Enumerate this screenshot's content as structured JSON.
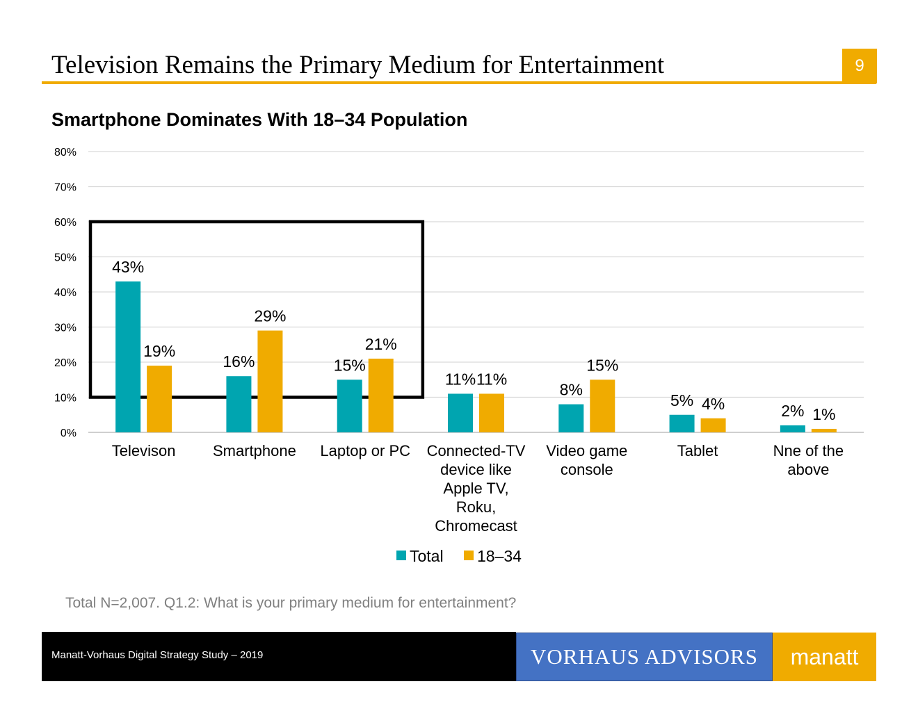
{
  "header": {
    "title": "Television Remains the Primary Medium for Entertainment",
    "page_number": "9"
  },
  "footnote": "Total N=2,007. Q1.2: What is your primary medium for entertainment?",
  "footer": {
    "study": "Manatt-Vorhaus Digital Strategy Study – 2019",
    "vorhaus_logo": "VORHAUS ADVISORS",
    "manatt_logo": "manatt"
  },
  "colors": {
    "accent": "#f0ab00",
    "total": "#00a5b0",
    "age_18_34": "#f0ab00",
    "vorhaus": "#4472c4"
  },
  "chart_data": {
    "type": "bar",
    "title": "Smartphone Dominates With 18–34 Population",
    "categories": [
      [
        "Televison"
      ],
      [
        "Smartphone"
      ],
      [
        "Laptop or PC"
      ],
      [
        "Connected-TV",
        "device like",
        "Apple TV,",
        "Roku,",
        "Chromecast"
      ],
      [
        "Video game",
        "console"
      ],
      [
        "Tablet"
      ],
      [
        "Nne of the",
        "above"
      ]
    ],
    "series": [
      {
        "name": "Total",
        "values": [
          43,
          16,
          15,
          11,
          8,
          5,
          2
        ],
        "labels": [
          "43%",
          "16%",
          "15%",
          "11%",
          "8%",
          "5%",
          "2%"
        ],
        "color": "#00a5b0"
      },
      {
        "name": "18–34",
        "values": [
          19,
          29,
          21,
          11,
          15,
          4,
          1
        ],
        "labels": [
          "19%",
          "29%",
          "21%",
          "11%",
          "15%",
          "4%",
          "1%"
        ],
        "color": "#f0ab00"
      }
    ],
    "yticks": [
      "0%",
      "10%",
      "20%",
      "30%",
      "40%",
      "50%",
      "60%",
      "70%",
      "80%"
    ],
    "ylim": [
      0,
      80
    ],
    "grid": true,
    "legend": "bottom-center",
    "highlight": {
      "categories": [
        "Televison",
        "Smartphone",
        "Laptop or PC"
      ],
      "range": [
        10,
        60
      ]
    }
  }
}
